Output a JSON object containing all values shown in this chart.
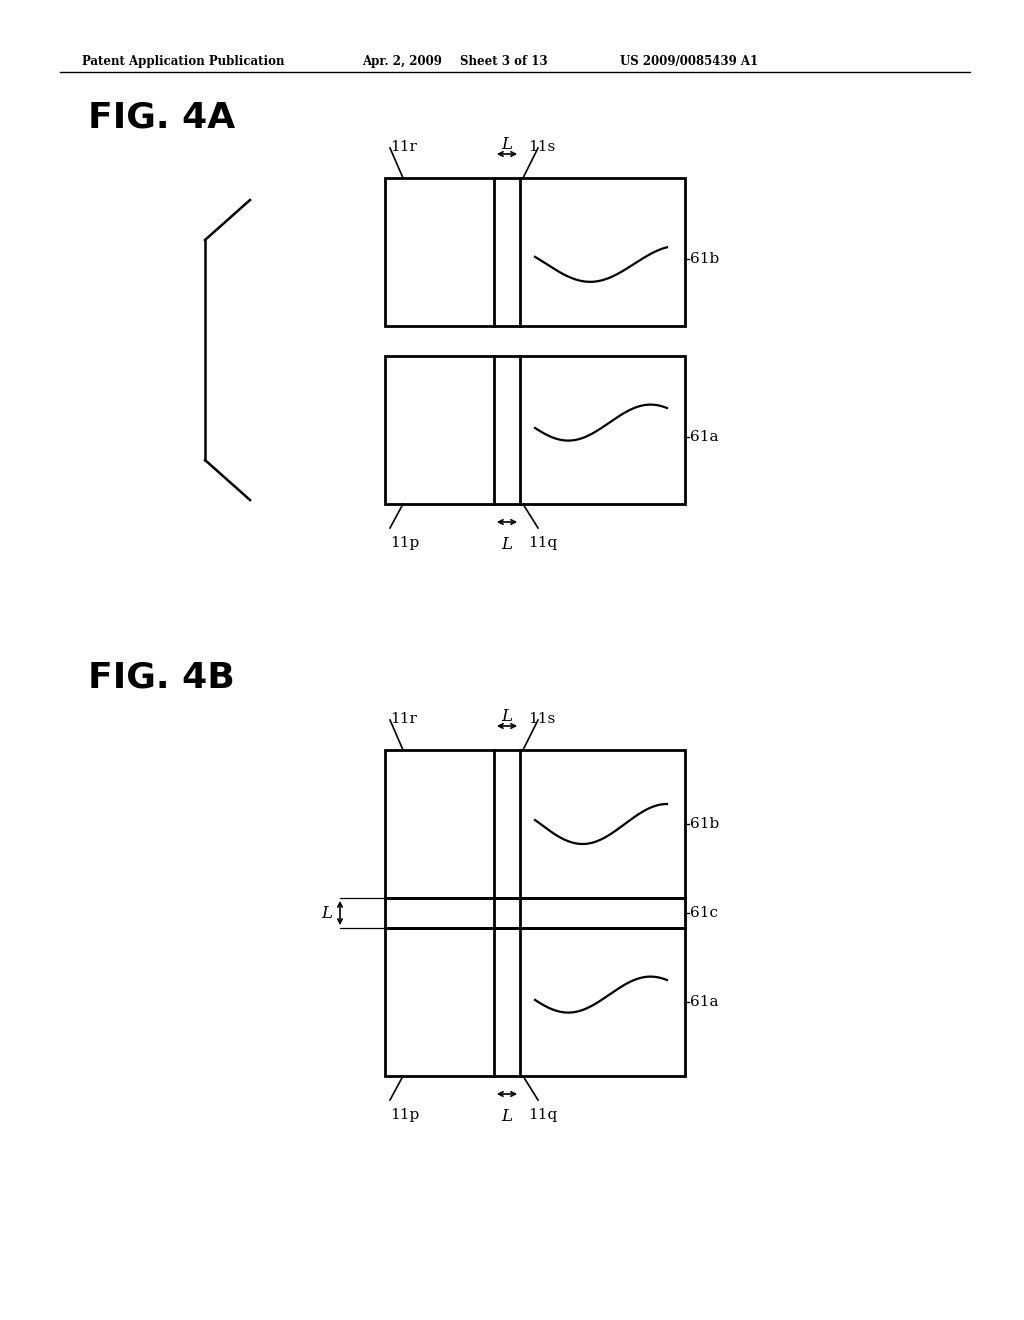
{
  "bg_color": "#ffffff",
  "header_text": "Patent Application Publication",
  "header_date": "Apr. 2, 2009",
  "header_sheet": "Sheet 3 of 13",
  "header_patent": "US 2009/0085439 A1",
  "fig4a_label": "FIG. 4A",
  "fig4b_label": "FIG. 4B",
  "line_color": "#000000",
  "text_color": "#000000"
}
